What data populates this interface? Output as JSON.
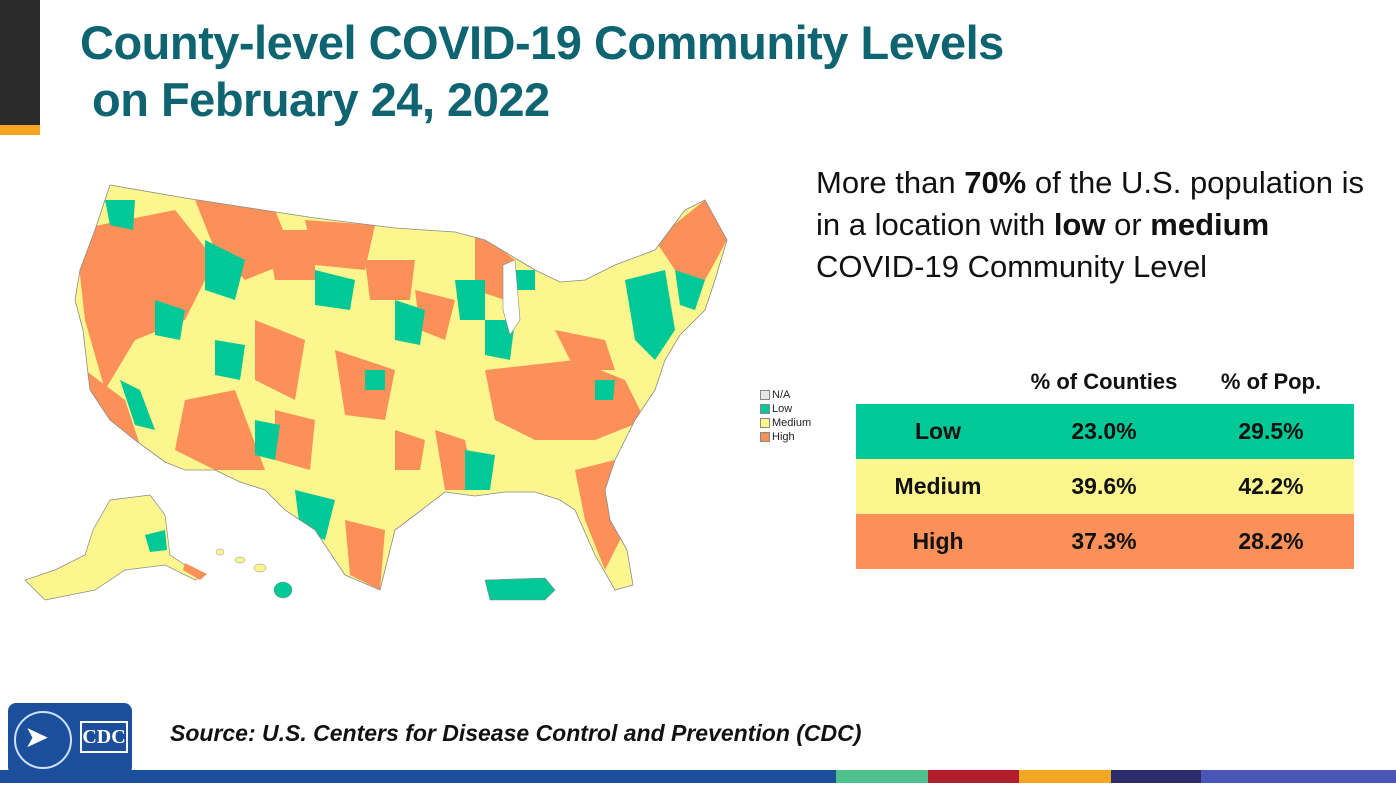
{
  "header": {
    "title_line1": "County-level COVID-19 Community Levels",
    "title_line2": "on February 24, 2022"
  },
  "statement": {
    "part1": "More than ",
    "pct": "70%",
    "part2": " of the U.S. population is in a location with ",
    "low": "low",
    "or": " or ",
    "medium": "medium",
    "part3": " COVID-19 Community Level"
  },
  "map": {
    "legend": [
      {
        "label": "N/A",
        "color": "#e6e6e6"
      },
      {
        "label": "Low",
        "color": "#00c896"
      },
      {
        "label": "Medium",
        "color": "#fdf68e"
      },
      {
        "label": "High",
        "color": "#fb9159"
      }
    ]
  },
  "table": {
    "headers": [
      "",
      "% of Counties",
      "% of Pop."
    ],
    "rows": [
      {
        "level": "Low",
        "counties": "23.0%",
        "pop": "29.5%"
      },
      {
        "level": "Medium",
        "counties": "39.6%",
        "pop": "42.2%"
      },
      {
        "level": "High",
        "counties": "37.3%",
        "pop": "28.2%"
      }
    ]
  },
  "footer": {
    "source": "Source: U.S. Centers for Disease Control and Prevention (CDC)",
    "logo_text": "CDC",
    "stripe_colors": [
      "#1b4f9c",
      "#4fc08d",
      "#b11d2b",
      "#f5a623",
      "#2a2c6b",
      "#4a56b5"
    ]
  },
  "colors": {
    "title": "#0e6470",
    "low": "#00c896",
    "medium": "#fdf68e",
    "high": "#fb9159"
  }
}
